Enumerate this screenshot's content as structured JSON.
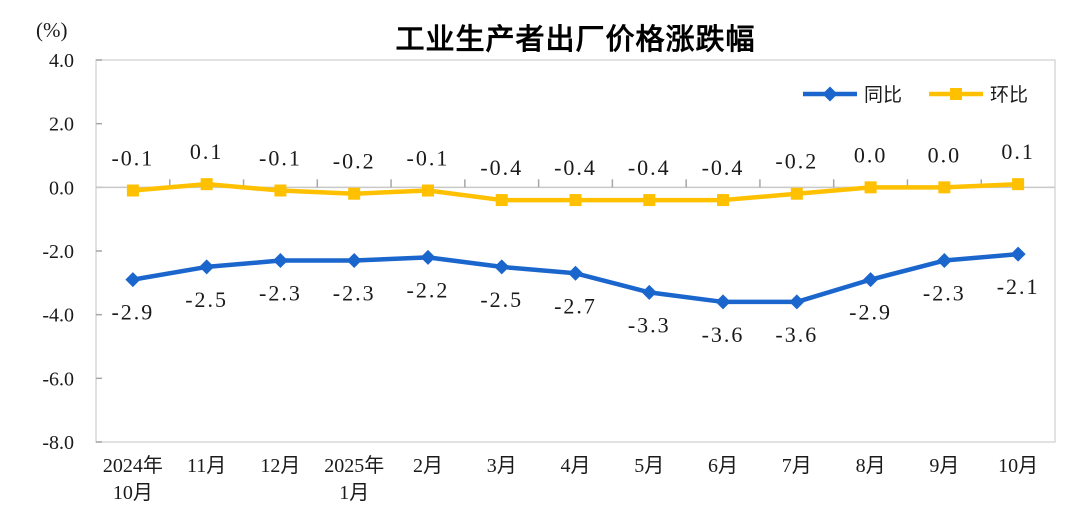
{
  "chart_data": {
    "type": "line",
    "title": "工业生产者出厂价格涨跌幅",
    "unit_label": "(%)",
    "ylim": [
      -8,
      4
    ],
    "grid": "zero-axis-line-only",
    "legend_position": "top-right-inside",
    "categories": [
      {
        "lines": [
          "2024年",
          "10月"
        ]
      },
      {
        "lines": [
          "11月"
        ]
      },
      {
        "lines": [
          "12月"
        ]
      },
      {
        "lines": [
          "2025年",
          "1月"
        ]
      },
      {
        "lines": [
          "2月"
        ]
      },
      {
        "lines": [
          "3月"
        ]
      },
      {
        "lines": [
          "4月"
        ]
      },
      {
        "lines": [
          "5月"
        ]
      },
      {
        "lines": [
          "6月"
        ]
      },
      {
        "lines": [
          "7月"
        ]
      },
      {
        "lines": [
          "8月"
        ]
      },
      {
        "lines": [
          "9月"
        ]
      },
      {
        "lines": [
          "10月"
        ]
      }
    ],
    "y_ticks": [
      {
        "value": 4,
        "label": "4.0"
      },
      {
        "value": 2,
        "label": "2.0"
      },
      {
        "value": 0,
        "label": "0.0"
      },
      {
        "value": -2,
        "label": "-2.0"
      },
      {
        "value": -4,
        "label": "-4.0"
      },
      {
        "value": -6,
        "label": "-6.0"
      },
      {
        "value": -8,
        "label": "-8.0"
      }
    ],
    "series": [
      {
        "name": "同比",
        "marker": "diamond",
        "color": "#1A66CC",
        "label_position": "below",
        "values": [
          -2.9,
          -2.5,
          -2.3,
          -2.3,
          -2.2,
          -2.5,
          -2.7,
          -3.3,
          -3.6,
          -3.6,
          -2.9,
          -2.3,
          -2.1
        ],
        "labels": [
          "-2.9",
          "-2.5",
          "-2.3",
          "-2.3",
          "-2.2",
          "-2.5",
          "-2.7",
          "-3.3",
          "-3.6",
          "-3.6",
          "-2.9",
          "-2.3",
          "-2.1"
        ]
      },
      {
        "name": "环比",
        "marker": "square",
        "color": "#FFC000",
        "label_position": "above",
        "values": [
          -0.1,
          0.1,
          -0.1,
          -0.2,
          -0.1,
          -0.4,
          -0.4,
          -0.4,
          -0.4,
          -0.2,
          0.0,
          0.0,
          0.1
        ],
        "labels": [
          "-0.1",
          "0.1",
          "-0.1",
          "-0.2",
          "-0.1",
          "-0.4",
          "-0.4",
          "-0.4",
          "-0.4",
          "-0.2",
          "0.0",
          "0.0",
          "0.1"
        ]
      }
    ],
    "colors": {
      "plot_border": "#D9D9D9",
      "zero_line": "#C9C9C9",
      "tick": "#A6A6A6",
      "text": "#1A1A1A",
      "title_text": "#000000"
    }
  }
}
